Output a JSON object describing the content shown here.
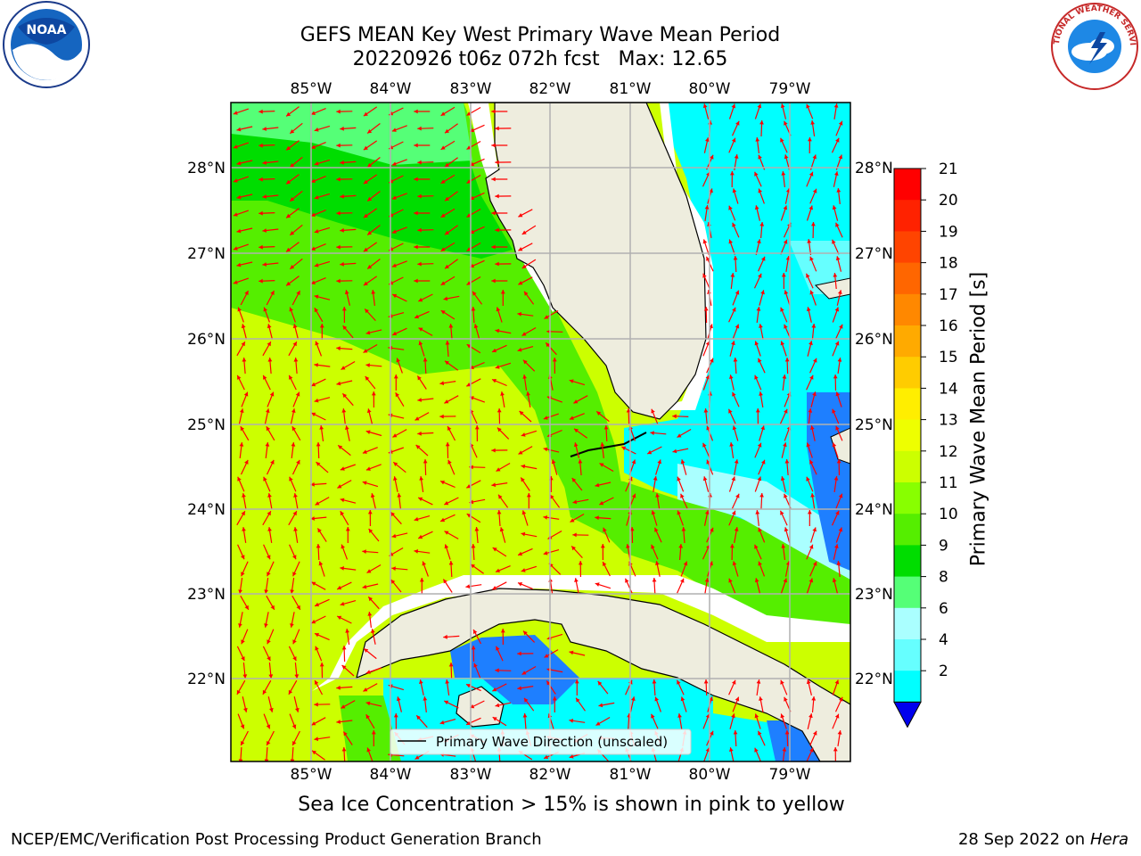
{
  "title": {
    "line1": "GEFS MEAN Key West Primary Wave Mean Period",
    "line2": "20220926 t06z 072h fcst   Max: 12.65"
  },
  "map": {
    "lon_labels": [
      "85°W",
      "84°W",
      "83°W",
      "82°W",
      "81°W",
      "80°W",
      "79°W"
    ],
    "lat_labels": [
      "28°N",
      "27°N",
      "26°N",
      "25°N",
      "24°N",
      "23°N",
      "22°N"
    ],
    "legend_label": "Primary Wave Direction (unscaled)",
    "land_color": "#eeedde",
    "arrow_color": "#ff0000"
  },
  "colorbar": {
    "label": "Primary Wave Mean Period [s]",
    "ticks": [
      "21",
      "20",
      "19",
      "18",
      "17",
      "16",
      "15",
      "14",
      "13",
      "12",
      "11",
      "10",
      "9",
      "8",
      "6",
      "4",
      "2"
    ],
    "colors": [
      "#ff0000",
      "#ff2200",
      "#ff4400",
      "#ff6600",
      "#ff8800",
      "#ffaa00",
      "#ffcc00",
      "#ffee00",
      "#eeff00",
      "#ccff00",
      "#88ff00",
      "#55ee00",
      "#00dd00",
      "#55ff77",
      "#aaffff",
      "#66ffff",
      "#00ffff",
      "#1e7fff"
    ],
    "extend_color": "#0000ee"
  },
  "bottom_note": "Sea Ice Concentration > 15% is shown in pink to yellow",
  "footer": {
    "left": "NCEP/EMC/Verification Post Processing Product Generation Branch",
    "right_prefix": "28 Sep 2022 on",
    "right_host": "Hera"
  },
  "logos": {
    "noaa_text": "NOAA",
    "nws_text": "NATIONAL WEATHER SERVICE"
  }
}
